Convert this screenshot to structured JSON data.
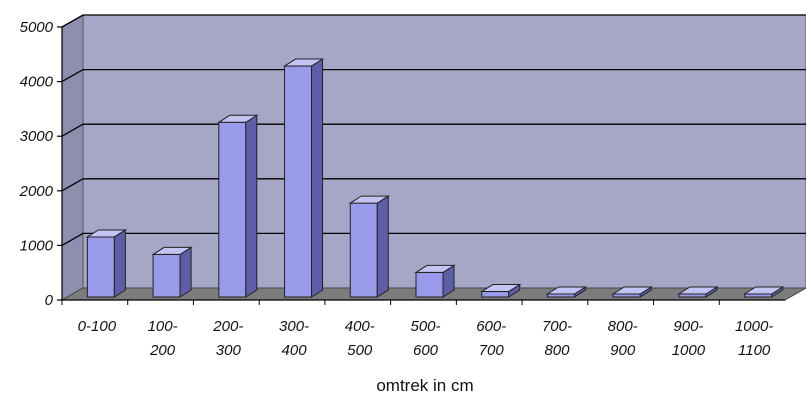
{
  "chart_data": {
    "type": "bar",
    "title": "",
    "xlabel": "omtrek in cm",
    "ylabel": "",
    "ylim": [
      0,
      5000
    ],
    "y_ticks": [
      "0",
      "1000",
      "2000",
      "3000",
      "4000",
      "5000"
    ],
    "y_tick_values": [
      0,
      1000,
      2000,
      3000,
      4000,
      5000
    ],
    "grid": true,
    "legend": "none",
    "categories": [
      [
        "0-100"
      ],
      [
        "100-",
        "200"
      ],
      [
        "200-",
        "300"
      ],
      [
        "300-",
        "400"
      ],
      [
        "400-",
        "500"
      ],
      [
        "500-",
        "600"
      ],
      [
        "600-",
        "700"
      ],
      [
        "700-",
        "800"
      ],
      [
        "800-",
        "900"
      ],
      [
        "900-",
        "1000"
      ],
      [
        "1000-",
        "1100"
      ]
    ],
    "values": [
      1100,
      780,
      3200,
      4230,
      1720,
      450,
      100,
      30,
      30,
      30,
      30
    ],
    "colors": {
      "bar_front": "#9a9aea",
      "bar_side": "#5e5ea8",
      "bar_top": "#c4c4f4",
      "wall": "#a6a6c6",
      "floor": "#7c7c7c"
    }
  }
}
